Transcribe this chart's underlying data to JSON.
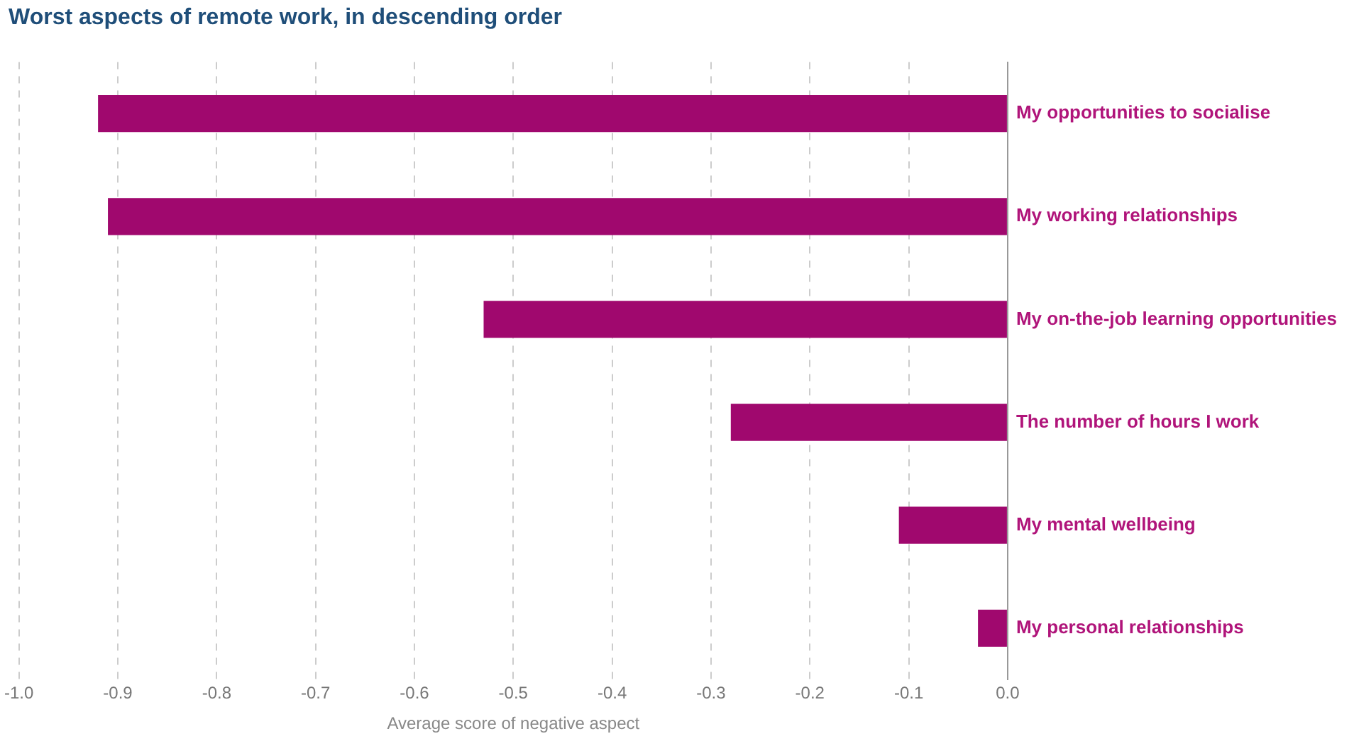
{
  "chart_data": {
    "type": "bar",
    "orientation": "horizontal",
    "title": "Worst aspects of remote work, in descending order",
    "xlabel": "Average score of negative aspect",
    "categories": [
      "My opportunities to socialise",
      "My working relationships",
      "My on-the-job learning opportunities",
      "The number of hours I work",
      "My mental wellbeing",
      "My personal relationships"
    ],
    "values": [
      -0.92,
      -0.91,
      -0.53,
      -0.28,
      -0.11,
      -0.03
    ],
    "color": "#a0086e",
    "xlim": [
      -1,
      0
    ],
    "xticks": [
      {
        "value": -1,
        "label": "-1.0"
      },
      -0.9,
      -0.8,
      -0.7,
      -0.6,
      -0.5,
      -0.4,
      -0.3,
      -0.2,
      -0.1,
      {
        "value": 0,
        "label": "0.0"
      }
    ],
    "grid": "x",
    "legend": false
  }
}
